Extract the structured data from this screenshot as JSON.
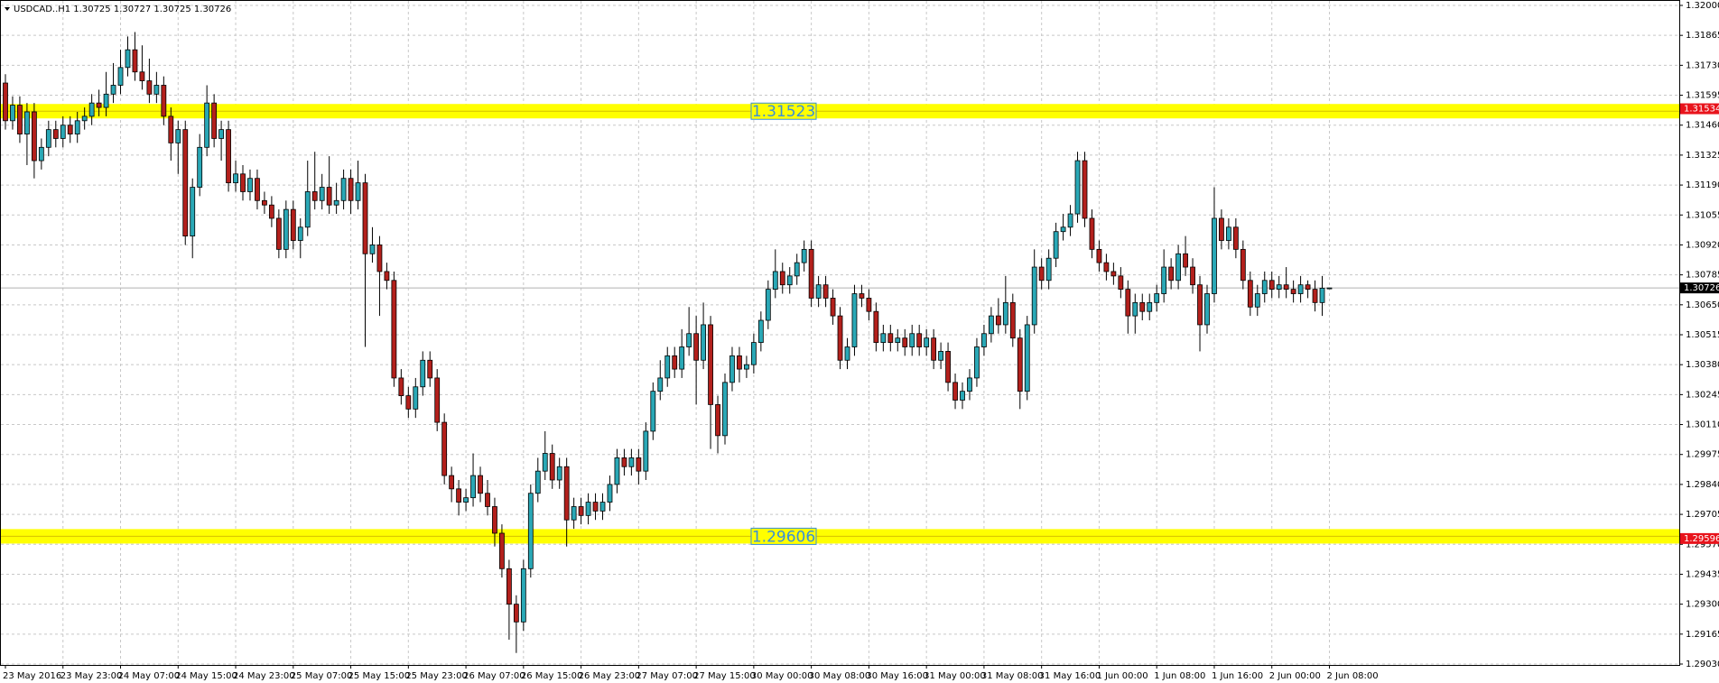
{
  "chart_data": {
    "type": "candlestick",
    "title": "USDCAD..H1 1.30725 1.30727 1.30725 1.30726",
    "categories": [
      "23 May 2016",
      null,
      null,
      null,
      null,
      null,
      null,
      null,
      "23 May 23:00",
      null,
      null,
      null,
      null,
      null,
      null,
      null,
      "24 May 07:00",
      null,
      null,
      null,
      null,
      null,
      null,
      null,
      "24 May 15:00",
      null,
      null,
      null,
      null,
      null,
      null,
      null,
      "24 May 23:00",
      null,
      null,
      null,
      null,
      null,
      null,
      null,
      "25 May 07:00",
      null,
      null,
      null,
      null,
      null,
      null,
      null,
      "25 May 15:00",
      null,
      null,
      null,
      null,
      null,
      null,
      null,
      "25 May 23:00",
      null,
      null,
      null,
      null,
      null,
      null,
      null,
      "26 May 07:00",
      null,
      null,
      null,
      null,
      null,
      null,
      null,
      "26 May 15:00",
      null,
      null,
      null,
      null,
      null,
      null,
      null,
      "26 May 23:00",
      null,
      null,
      null,
      null,
      null,
      null,
      null,
      "27 May 07:00",
      null,
      null,
      null,
      null,
      null,
      null,
      null,
      "27 May 15:00",
      null,
      null,
      null,
      null,
      null,
      null,
      null,
      "30 May 00:00",
      null,
      null,
      null,
      null,
      null,
      null,
      null,
      "30 May 08:00",
      null,
      null,
      null,
      null,
      null,
      null,
      null,
      "30 May 16:00",
      null,
      null,
      null,
      null,
      null,
      null,
      null,
      "31 May 00:00",
      null,
      null,
      null,
      null,
      null,
      null,
      null,
      "31 May 08:00",
      null,
      null,
      null,
      null,
      null,
      null,
      null,
      "31 May 16:00",
      null,
      null,
      null,
      null,
      null,
      null,
      null,
      "1 Jun 00:00",
      null,
      null,
      null,
      null,
      null,
      null,
      null,
      "1 Jun 08:00",
      null,
      null,
      null,
      null,
      null,
      null,
      null,
      "1 Jun 16:00",
      null,
      null,
      null,
      null,
      null,
      null,
      null,
      "2 Jun 00:00",
      null,
      null,
      null,
      null,
      null,
      null,
      null,
      "2 Jun 08:00"
    ],
    "open": [
      1.3165,
      1.3148,
      1.3155,
      1.3142,
      1.3152,
      1.313,
      1.3136,
      1.3144,
      1.314,
      1.3146,
      1.3142,
      1.3148,
      1.315,
      1.3156,
      1.3154,
      1.316,
      1.3164,
      1.3172,
      1.318,
      1.317,
      1.3166,
      1.316,
      1.3164,
      1.315,
      1.3138,
      1.3144,
      1.3096,
      1.3118,
      1.3136,
      1.3156,
      1.314,
      1.3144,
      1.312,
      1.3124,
      1.3116,
      1.3122,
      1.3112,
      1.311,
      1.3104,
      1.309,
      1.3108,
      1.3094,
      1.31,
      1.3116,
      1.3112,
      1.3118,
      1.311,
      1.3112,
      1.3122,
      1.3112,
      1.312,
      1.3088,
      1.3092,
      1.308,
      1.3076,
      1.3032,
      1.3024,
      1.3018,
      1.3028,
      1.304,
      1.3032,
      1.3012,
      1.2988,
      1.2982,
      1.2976,
      1.2978,
      1.2988,
      1.298,
      1.2974,
      1.2962,
      1.2946,
      1.293,
      1.2922,
      1.2946,
      1.298,
      1.299,
      1.2998,
      1.2986,
      1.2992,
      1.2968,
      1.2974,
      1.297,
      1.2976,
      1.2972,
      1.2976,
      1.2984,
      1.2996,
      1.2992,
      1.2996,
      1.299,
      1.3008,
      1.3026,
      1.3032,
      1.3042,
      1.3036,
      1.3046,
      1.3052,
      1.304,
      1.3056,
      1.302,
      1.3006,
      1.303,
      1.3042,
      1.3036,
      1.3038,
      1.3048,
      1.3058,
      1.3072,
      1.308,
      1.3074,
      1.3078,
      1.3084,
      1.309,
      1.3068,
      1.3074,
      1.3068,
      1.306,
      1.304,
      1.3046,
      1.307,
      1.3068,
      1.3062,
      1.3048,
      1.3052,
      1.3048,
      1.305,
      1.3046,
      1.3052,
      1.3046,
      1.305,
      1.304,
      1.3044,
      1.303,
      1.3022,
      1.3026,
      1.3032,
      1.3046,
      1.3052,
      1.306,
      1.3056,
      1.3066,
      1.305,
      1.3026,
      1.3056,
      1.3082,
      1.3076,
      1.3086,
      1.3098,
      1.31,
      1.3106,
      1.313,
      1.3104,
      1.309,
      1.3084,
      1.308,
      1.3078,
      1.3072,
      1.306,
      1.3066,
      1.3062,
      1.3066,
      1.307,
      1.3082,
      1.3076,
      1.3088,
      1.3082,
      1.3074,
      1.3056,
      1.307,
      1.3104,
      1.3094,
      1.31,
      1.309,
      1.3076,
      1.3064,
      1.307,
      1.3076,
      1.3072,
      1.3074,
      1.3072,
      1.307,
      1.3074,
      1.3072,
      1.3066,
      1.30725
    ],
    "high": [
      1.3169,
      1.3159,
      1.3159,
      1.3156,
      1.3156,
      1.314,
      1.3148,
      1.3148,
      1.315,
      1.315,
      1.3152,
      1.3154,
      1.316,
      1.3162,
      1.317,
      1.3174,
      1.318,
      1.3186,
      1.3188,
      1.3182,
      1.3176,
      1.317,
      1.3168,
      1.3154,
      1.3148,
      1.3148,
      1.3122,
      1.3142,
      1.3164,
      1.316,
      1.3148,
      1.3148,
      1.313,
      1.3128,
      1.3126,
      1.3126,
      1.3116,
      1.3114,
      1.3108,
      1.3112,
      1.3112,
      1.3104,
      1.313,
      1.3134,
      1.3124,
      1.3132,
      1.312,
      1.3126,
      1.3126,
      1.313,
      1.3124,
      1.31,
      1.3096,
      1.3084,
      1.308,
      1.3036,
      1.3028,
      1.3032,
      1.3044,
      1.3044,
      1.3036,
      1.3016,
      1.2992,
      1.2986,
      1.2982,
      1.2998,
      1.2992,
      1.2986,
      1.2978,
      1.2966,
      1.295,
      1.2934,
      1.295,
      1.2984,
      1.2996,
      1.3008,
      1.3002,
      1.2996,
      1.2996,
      1.2978,
      1.2978,
      1.298,
      1.298,
      1.298,
      1.2988,
      1.3,
      1.3,
      1.3,
      1.3,
      1.3012,
      1.303,
      1.304,
      1.3046,
      1.3046,
      1.3054,
      1.3064,
      1.306,
      1.3066,
      1.306,
      1.3024,
      1.3034,
      1.3046,
      1.3046,
      1.3042,
      1.3052,
      1.3062,
      1.3076,
      1.309,
      1.3084,
      1.3082,
      1.3088,
      1.3094,
      1.3094,
      1.3078,
      1.3078,
      1.3072,
      1.3064,
      1.305,
      1.3074,
      1.3074,
      1.3072,
      1.3066,
      1.3056,
      1.3056,
      1.3054,
      1.3054,
      1.3056,
      1.3056,
      1.3054,
      1.3054,
      1.3048,
      1.3048,
      1.3034,
      1.303,
      1.3036,
      1.305,
      1.3056,
      1.3064,
      1.3068,
      1.3078,
      1.307,
      1.3054,
      1.306,
      1.309,
      1.3086,
      1.309,
      1.3102,
      1.3106,
      1.311,
      1.3134,
      1.3134,
      1.3108,
      1.3094,
      1.3088,
      1.3084,
      1.3082,
      1.3076,
      1.307,
      1.307,
      1.307,
      1.3074,
      1.309,
      1.3086,
      1.3092,
      1.3096,
      1.3086,
      1.3078,
      1.3074,
      1.3118,
      1.3108,
      1.3104,
      1.3104,
      1.3094,
      1.308,
      1.3074,
      1.308,
      1.308,
      1.3078,
      1.3082,
      1.3076,
      1.3078,
      1.3076,
      1.3076,
      1.3078,
      1.30727
    ],
    "low": [
      1.3144,
      1.3144,
      1.3138,
      1.3128,
      1.3122,
      1.3126,
      1.3132,
      1.3136,
      1.3136,
      1.3138,
      1.3138,
      1.3144,
      1.3146,
      1.315,
      1.315,
      1.3156,
      1.316,
      1.3168,
      1.3166,
      1.3162,
      1.3156,
      1.3156,
      1.3146,
      1.313,
      1.3124,
      1.3092,
      1.3086,
      1.3114,
      1.3132,
      1.3136,
      1.313,
      1.3116,
      1.3116,
      1.3112,
      1.3112,
      1.3108,
      1.3106,
      1.31,
      1.3086,
      1.3086,
      1.309,
      1.3086,
      1.3096,
      1.3108,
      1.3108,
      1.3106,
      1.3106,
      1.3108,
      1.3106,
      1.3108,
      1.3046,
      1.3084,
      1.306,
      1.3072,
      1.3028,
      1.302,
      1.3014,
      1.3014,
      1.3024,
      1.3028,
      1.3008,
      1.2984,
      1.2976,
      1.297,
      1.2972,
      1.2974,
      1.2976,
      1.297,
      1.2956,
      1.2942,
      1.2914,
      1.2908,
      1.2918,
      1.2942,
      1.2976,
      1.2986,
      1.2982,
      1.2982,
      1.2956,
      1.2964,
      1.2966,
      1.2966,
      1.2968,
      1.2968,
      1.2972,
      1.298,
      1.2988,
      1.2988,
      1.2984,
      1.2986,
      1.3004,
      1.3022,
      1.3028,
      1.3032,
      1.3032,
      1.3042,
      1.302,
      1.3036,
      1.3,
      1.2998,
      1.3002,
      1.3026,
      1.303,
      1.3032,
      1.3034,
      1.3044,
      1.3054,
      1.3068,
      1.307,
      1.307,
      1.3074,
      1.308,
      1.3064,
      1.3064,
      1.3064,
      1.3056,
      1.3036,
      1.3036,
      1.3042,
      1.3064,
      1.3058,
      1.3044,
      1.3044,
      1.3044,
      1.3044,
      1.3042,
      1.3042,
      1.3042,
      1.3042,
      1.3036,
      1.3036,
      1.3026,
      1.3018,
      1.3018,
      1.3022,
      1.3028,
      1.3042,
      1.3048,
      1.3052,
      1.3052,
      1.3046,
      1.3018,
      1.3022,
      1.3052,
      1.3072,
      1.3072,
      1.3082,
      1.3094,
      1.3096,
      1.3102,
      1.31,
      1.3086,
      1.308,
      1.3076,
      1.3074,
      1.3068,
      1.3052,
      1.3052,
      1.3058,
      1.3058,
      1.3062,
      1.3066,
      1.3072,
      1.3072,
      1.3078,
      1.307,
      1.3044,
      1.3052,
      1.3066,
      1.309,
      1.309,
      1.3086,
      1.3072,
      1.306,
      1.306,
      1.3066,
      1.3068,
      1.3068,
      1.3068,
      1.3066,
      1.3066,
      1.3068,
      1.3062,
      1.306,
      1.30725
    ],
    "close": [
      1.3148,
      1.3155,
      1.3142,
      1.3152,
      1.313,
      1.3136,
      1.3144,
      1.314,
      1.3146,
      1.3142,
      1.3148,
      1.315,
      1.3156,
      1.3154,
      1.316,
      1.3164,
      1.3172,
      1.318,
      1.317,
      1.3166,
      1.316,
      1.3164,
      1.315,
      1.3138,
      1.3144,
      1.3096,
      1.3118,
      1.3136,
      1.3156,
      1.314,
      1.3144,
      1.312,
      1.3124,
      1.3116,
      1.3122,
      1.3112,
      1.311,
      1.3104,
      1.309,
      1.3108,
      1.3094,
      1.31,
      1.3116,
      1.3112,
      1.3118,
      1.311,
      1.3112,
      1.3122,
      1.3112,
      1.312,
      1.3088,
      1.3092,
      1.308,
      1.3076,
      1.3032,
      1.3024,
      1.3018,
      1.3028,
      1.304,
      1.3032,
      1.3012,
      1.2988,
      1.2982,
      1.2976,
      1.2978,
      1.2988,
      1.298,
      1.2974,
      1.2962,
      1.2946,
      1.293,
      1.2922,
      1.2946,
      1.298,
      1.299,
      1.2998,
      1.2986,
      1.2992,
      1.2968,
      1.2974,
      1.297,
      1.2976,
      1.2972,
      1.2976,
      1.2984,
      1.2996,
      1.2992,
      1.2996,
      1.299,
      1.3008,
      1.3026,
      1.3032,
      1.3042,
      1.3036,
      1.3046,
      1.3052,
      1.304,
      1.3056,
      1.302,
      1.3006,
      1.303,
      1.3042,
      1.3036,
      1.3038,
      1.3048,
      1.3058,
      1.3072,
      1.308,
      1.3074,
      1.3078,
      1.3084,
      1.309,
      1.3068,
      1.3074,
      1.3068,
      1.306,
      1.304,
      1.3046,
      1.307,
      1.3068,
      1.3062,
      1.3048,
      1.3052,
      1.3048,
      1.305,
      1.3046,
      1.3052,
      1.3046,
      1.305,
      1.304,
      1.3044,
      1.303,
      1.3022,
      1.3026,
      1.3032,
      1.3046,
      1.3052,
      1.306,
      1.3056,
      1.3066,
      1.305,
      1.3026,
      1.3056,
      1.3082,
      1.3076,
      1.3086,
      1.3098,
      1.31,
      1.3106,
      1.313,
      1.3104,
      1.309,
      1.3084,
      1.308,
      1.3078,
      1.3072,
      1.306,
      1.3066,
      1.3062,
      1.3066,
      1.307,
      1.3082,
      1.3076,
      1.3088,
      1.3082,
      1.3074,
      1.3056,
      1.307,
      1.3104,
      1.3094,
      1.31,
      1.309,
      1.3076,
      1.3064,
      1.307,
      1.3076,
      1.3072,
      1.3074,
      1.3072,
      1.307,
      1.3074,
      1.3072,
      1.3066,
      1.30725,
      1.30726
    ],
    "up_color": "#2aa8b6",
    "down_color": "#b3201c",
    "ylim": [
      1.2903,
      1.32
    ],
    "yticks": [
      {
        "value": 1.32,
        "label": "1.32000"
      },
      1.31865,
      {
        "value": 1.3173,
        "label": "1.31730"
      },
      1.31595,
      {
        "value": 1.3146,
        "label": "1.31460"
      },
      1.31325,
      {
        "value": 1.3119,
        "label": "1.31190"
      },
      1.31055,
      {
        "value": 1.3092,
        "label": "1.30920"
      },
      1.30785,
      {
        "value": 1.3065,
        "label": "1.30650"
      },
      1.30515,
      {
        "value": 1.3038,
        "label": "1.30380"
      },
      1.30245,
      {
        "value": 1.3011,
        "label": "1.30110"
      },
      1.29975,
      {
        "value": 1.2984,
        "label": "1.29840"
      },
      1.29705,
      {
        "value": 1.2957,
        "label": "1.29570"
      },
      1.29435,
      {
        "value": 1.293,
        "label": "1.29300"
      },
      1.29165,
      {
        "value": 1.2903,
        "label": "1.29030"
      }
    ],
    "grid": true,
    "levels": [
      1.31523,
      1.29606
    ],
    "level_color": "#ffff00",
    "level_markers": [
      1.31534,
      1.29596
    ]
  }
}
